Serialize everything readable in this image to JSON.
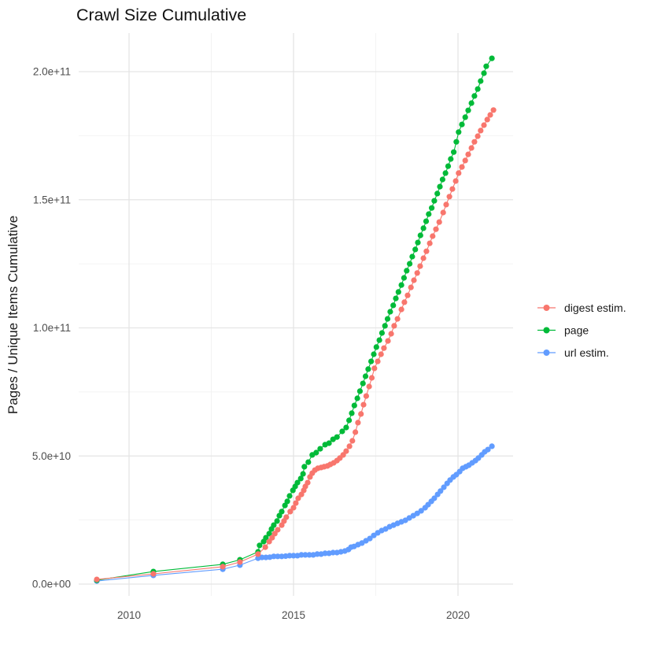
{
  "title": "Crawl Size Cumulative",
  "background": "#ffffff",
  "y_axis": {
    "label": "Pages / Unique Items Cumulative",
    "ticks": [
      {
        "label": "0.0e+00",
        "value_e9": 0
      },
      {
        "label": "5.0e+10",
        "value_e9": 50
      },
      {
        "label": "1.0e+11",
        "value_e9": 100
      },
      {
        "label": "1.5e+11",
        "value_e9": 150
      },
      {
        "label": "2.0e+11",
        "value_e9": 200
      }
    ]
  },
  "x_axis": {
    "ticks": [
      {
        "label": "2010",
        "year": 2010
      },
      {
        "label": "2015",
        "year": 2015
      },
      {
        "label": "2020",
        "year": 2020
      }
    ]
  },
  "gridlines": {
    "y_minor_e9": [
      25,
      75,
      125,
      175
    ],
    "x_minor_years": [
      2012.5,
      2017.5
    ]
  },
  "legend": {
    "position": "right",
    "entries": [
      "digest estim.",
      "page",
      "url estim."
    ]
  },
  "chart_data": {
    "type": "scatter",
    "title": "Crawl Size Cumulative",
    "xlabel": "",
    "ylabel": "Pages / Unique Items Cumulative",
    "x_unit": "year",
    "y_unit": "items, value stored in billions (1e9)",
    "xlim": [
      2008.5,
      2021.7
    ],
    "ylim_e9": [
      -5,
      215
    ],
    "grid": true,
    "legend_position": "right",
    "series": [
      {
        "name": "digest estim.",
        "color": "#F8766D",
        "points": [
          [
            2009.02,
            1.8
          ],
          [
            2010.74,
            4.0
          ],
          [
            2012.85,
            6.8
          ],
          [
            2013.37,
            8.6
          ],
          [
            2013.92,
            11.7
          ],
          [
            2014.14,
            14.4
          ],
          [
            2014.26,
            16.6
          ],
          [
            2014.35,
            18.1
          ],
          [
            2014.43,
            19.7
          ],
          [
            2014.52,
            21.2
          ],
          [
            2014.64,
            23.0
          ],
          [
            2014.71,
            24.6
          ],
          [
            2014.78,
            26.1
          ],
          [
            2014.9,
            28.3
          ],
          [
            2015.0,
            29.8
          ],
          [
            2015.07,
            31.6
          ],
          [
            2015.14,
            33.5
          ],
          [
            2015.24,
            35.0
          ],
          [
            2015.31,
            36.6
          ],
          [
            2015.36,
            38.1
          ],
          [
            2015.43,
            39.6
          ],
          [
            2015.5,
            41.8
          ],
          [
            2015.57,
            43.3
          ],
          [
            2015.65,
            44.5
          ],
          [
            2015.74,
            45.2
          ],
          [
            2015.84,
            45.5
          ],
          [
            2015.93,
            45.8
          ],
          [
            2016.03,
            46.1
          ],
          [
            2016.12,
            46.7
          ],
          [
            2016.22,
            47.3
          ],
          [
            2016.32,
            48.2
          ],
          [
            2016.41,
            49.2
          ],
          [
            2016.51,
            50.4
          ],
          [
            2016.6,
            51.9
          ],
          [
            2016.7,
            53.8
          ],
          [
            2016.79,
            55.9
          ],
          [
            2016.88,
            59.3
          ],
          [
            2016.96,
            63.0
          ],
          [
            2017.05,
            66.4
          ],
          [
            2017.13,
            70.0
          ],
          [
            2017.21,
            73.4
          ],
          [
            2017.3,
            77.1
          ],
          [
            2017.38,
            80.5
          ],
          [
            2017.46,
            84.2
          ],
          [
            2017.56,
            86.9
          ],
          [
            2017.66,
            89.7
          ],
          [
            2017.75,
            92.1
          ],
          [
            2017.87,
            94.9
          ],
          [
            2017.97,
            97.7
          ],
          [
            2018.06,
            100.8
          ],
          [
            2018.16,
            103.5
          ],
          [
            2018.28,
            107.2
          ],
          [
            2018.37,
            110.0
          ],
          [
            2018.47,
            112.7
          ],
          [
            2018.57,
            115.8
          ],
          [
            2018.66,
            118.6
          ],
          [
            2018.76,
            121.4
          ],
          [
            2018.85,
            124.1
          ],
          [
            2018.95,
            127.2
          ],
          [
            2019.04,
            129.9
          ],
          [
            2019.14,
            133.0
          ],
          [
            2019.23,
            135.8
          ],
          [
            2019.33,
            138.5
          ],
          [
            2019.43,
            141.3
          ],
          [
            2019.55,
            145.0
          ],
          [
            2019.64,
            148.1
          ],
          [
            2019.74,
            151.2
          ],
          [
            2019.83,
            154.2
          ],
          [
            2019.93,
            157.3
          ],
          [
            2020.02,
            160.4
          ],
          [
            2020.12,
            162.8
          ],
          [
            2020.22,
            165.3
          ],
          [
            2020.31,
            167.7
          ],
          [
            2020.41,
            170.2
          ],
          [
            2020.5,
            172.6
          ],
          [
            2020.6,
            174.8
          ],
          [
            2020.69,
            177.0
          ],
          [
            2020.79,
            179.1
          ],
          [
            2020.89,
            181.3
          ],
          [
            2020.98,
            183.1
          ],
          [
            2021.08,
            185.0
          ]
        ]
      },
      {
        "name": "page",
        "color": "#00BA38",
        "points": [
          [
            2009.02,
            1.5
          ],
          [
            2010.74,
            4.9
          ],
          [
            2012.85,
            7.7
          ],
          [
            2013.37,
            9.5
          ],
          [
            2013.92,
            12.6
          ],
          [
            2013.97,
            15.1
          ],
          [
            2014.09,
            16.6
          ],
          [
            2014.16,
            18.1
          ],
          [
            2014.26,
            19.7
          ],
          [
            2014.33,
            21.5
          ],
          [
            2014.4,
            23.0
          ],
          [
            2014.5,
            24.6
          ],
          [
            2014.57,
            26.7
          ],
          [
            2014.64,
            28.3
          ],
          [
            2014.74,
            30.7
          ],
          [
            2014.81,
            32.3
          ],
          [
            2014.88,
            34.4
          ],
          [
            2014.98,
            36.6
          ],
          [
            2015.05,
            38.1
          ],
          [
            2015.12,
            39.6
          ],
          [
            2015.22,
            41.2
          ],
          [
            2015.29,
            43.0
          ],
          [
            2015.33,
            45.8
          ],
          [
            2015.45,
            47.6
          ],
          [
            2015.57,
            50.4
          ],
          [
            2015.69,
            51.3
          ],
          [
            2015.81,
            52.8
          ],
          [
            2015.96,
            54.4
          ],
          [
            2016.08,
            55.0
          ],
          [
            2016.2,
            56.5
          ],
          [
            2016.32,
            57.4
          ],
          [
            2016.48,
            59.6
          ],
          [
            2016.6,
            61.1
          ],
          [
            2016.69,
            63.9
          ],
          [
            2016.77,
            66.7
          ],
          [
            2016.85,
            69.7
          ],
          [
            2016.94,
            72.5
          ],
          [
            2017.02,
            75.3
          ],
          [
            2017.11,
            78.3
          ],
          [
            2017.19,
            81.1
          ],
          [
            2017.27,
            83.9
          ],
          [
            2017.36,
            86.9
          ],
          [
            2017.44,
            89.7
          ],
          [
            2017.52,
            92.5
          ],
          [
            2017.61,
            95.2
          ],
          [
            2017.69,
            98.0
          ],
          [
            2017.78,
            100.8
          ],
          [
            2017.86,
            103.5
          ],
          [
            2017.94,
            106.3
          ],
          [
            2018.03,
            108.8
          ],
          [
            2018.11,
            111.5
          ],
          [
            2018.19,
            114.0
          ],
          [
            2018.28,
            116.7
          ],
          [
            2018.36,
            119.5
          ],
          [
            2018.44,
            122.3
          ],
          [
            2018.53,
            125.0
          ],
          [
            2018.61,
            127.8
          ],
          [
            2018.7,
            130.6
          ],
          [
            2018.78,
            133.3
          ],
          [
            2018.86,
            136.1
          ],
          [
            2018.95,
            138.9
          ],
          [
            2019.03,
            141.6
          ],
          [
            2019.11,
            144.4
          ],
          [
            2019.2,
            146.8
          ],
          [
            2019.28,
            149.6
          ],
          [
            2019.37,
            152.4
          ],
          [
            2019.45,
            155.1
          ],
          [
            2019.53,
            157.9
          ],
          [
            2019.62,
            160.4
          ],
          [
            2019.7,
            163.1
          ],
          [
            2019.78,
            165.9
          ],
          [
            2019.87,
            168.6
          ],
          [
            2019.95,
            172.6
          ],
          [
            2020.02,
            176.4
          ],
          [
            2020.12,
            179.4
          ],
          [
            2020.22,
            182.2
          ],
          [
            2020.31,
            184.9
          ],
          [
            2020.41,
            187.7
          ],
          [
            2020.5,
            190.5
          ],
          [
            2020.6,
            193.2
          ],
          [
            2020.69,
            196.3
          ],
          [
            2020.79,
            199.4
          ],
          [
            2020.86,
            202.1
          ],
          [
            2021.03,
            205.2
          ]
        ]
      },
      {
        "name": "url estim.",
        "color": "#619CFF",
        "points": [
          [
            2009.02,
            1.2
          ],
          [
            2010.74,
            3.4
          ],
          [
            2012.85,
            5.8
          ],
          [
            2013.37,
            7.4
          ],
          [
            2013.92,
            10.1
          ],
          [
            2014.04,
            10.4
          ],
          [
            2014.16,
            10.4
          ],
          [
            2014.28,
            10.5
          ],
          [
            2014.4,
            10.8
          ],
          [
            2014.52,
            10.8
          ],
          [
            2014.64,
            10.8
          ],
          [
            2014.76,
            10.9
          ],
          [
            2014.88,
            11.1
          ],
          [
            2015.0,
            11.1
          ],
          [
            2015.12,
            11.1
          ],
          [
            2015.24,
            11.4
          ],
          [
            2015.36,
            11.4
          ],
          [
            2015.48,
            11.4
          ],
          [
            2015.6,
            11.4
          ],
          [
            2015.72,
            11.7
          ],
          [
            2015.84,
            11.7
          ],
          [
            2015.96,
            12.0
          ],
          [
            2016.08,
            12.0
          ],
          [
            2016.2,
            12.3
          ],
          [
            2016.32,
            12.3
          ],
          [
            2016.44,
            12.6
          ],
          [
            2016.56,
            12.9
          ],
          [
            2016.67,
            13.5
          ],
          [
            2016.75,
            14.4
          ],
          [
            2016.84,
            14.7
          ],
          [
            2016.96,
            15.4
          ],
          [
            2017.08,
            16.0
          ],
          [
            2017.2,
            16.9
          ],
          [
            2017.32,
            17.8
          ],
          [
            2017.44,
            19.0
          ],
          [
            2017.56,
            20.0
          ],
          [
            2017.68,
            20.9
          ],
          [
            2017.8,
            21.5
          ],
          [
            2017.92,
            22.4
          ],
          [
            2018.04,
            23.0
          ],
          [
            2018.16,
            23.7
          ],
          [
            2018.28,
            24.3
          ],
          [
            2018.4,
            24.9
          ],
          [
            2018.52,
            25.8
          ],
          [
            2018.64,
            26.7
          ],
          [
            2018.76,
            27.6
          ],
          [
            2018.88,
            28.6
          ],
          [
            2019.0,
            29.8
          ],
          [
            2019.09,
            31.0
          ],
          [
            2019.19,
            32.3
          ],
          [
            2019.28,
            33.5
          ],
          [
            2019.38,
            35.0
          ],
          [
            2019.47,
            36.3
          ],
          [
            2019.57,
            37.8
          ],
          [
            2019.67,
            39.3
          ],
          [
            2019.76,
            40.6
          ],
          [
            2019.86,
            41.8
          ],
          [
            2019.95,
            42.7
          ],
          [
            2020.05,
            43.9
          ],
          [
            2020.14,
            45.2
          ],
          [
            2020.24,
            45.8
          ],
          [
            2020.33,
            46.4
          ],
          [
            2020.43,
            47.3
          ],
          [
            2020.53,
            48.2
          ],
          [
            2020.62,
            49.2
          ],
          [
            2020.72,
            50.4
          ],
          [
            2020.81,
            51.6
          ],
          [
            2020.91,
            52.5
          ],
          [
            2021.03,
            53.8
          ]
        ]
      }
    ]
  }
}
